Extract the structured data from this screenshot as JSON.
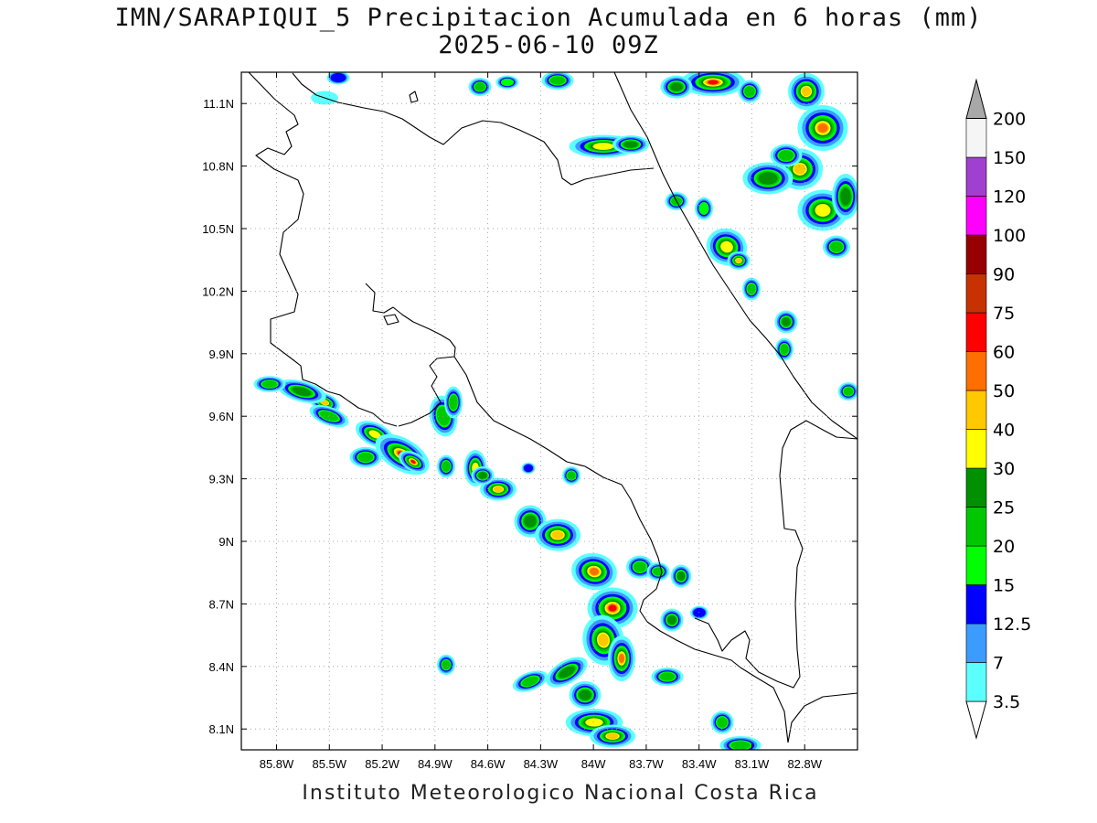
{
  "title": {
    "line1": "IMN/SARAPIQUI_5 Precipitacion Acumulada en 6 horas (mm)",
    "line2": "2025-06-10 09Z"
  },
  "footer": "Instituto Meteorologico Nacional Costa Rica",
  "map": {
    "lon_range": [
      -86.0,
      -82.5
    ],
    "lat_range": [
      8.0,
      11.25
    ],
    "lon_ticks": [
      "85.8W",
      "85.5W",
      "85.2W",
      "84.9W",
      "84.6W",
      "84.3W",
      "84W",
      "83.7W",
      "83.4W",
      "83.1W",
      "82.8W"
    ],
    "lat_ticks": [
      "11.1N",
      "10.8N",
      "10.5N",
      "10.2N",
      "9.9N",
      "9.6N",
      "9.3N",
      "9N",
      "8.7N",
      "8.4N",
      "8.1N"
    ],
    "grid": "dotted",
    "coastline_color": "#000000"
  },
  "colorbar": {
    "levels": [
      "3.5",
      "7",
      "12.5",
      "15",
      "20",
      "25",
      "30",
      "40",
      "50",
      "60",
      "75",
      "90",
      "100",
      "120",
      "150",
      "200"
    ],
    "colors": [
      "#ffffff",
      "#5cffff",
      "#3c9bff",
      "#0000ff",
      "#00ff00",
      "#00c800",
      "#009000",
      "#ffff00",
      "#ffc800",
      "#ff6e00",
      "#ff0000",
      "#c83200",
      "#960000",
      "#ff00ff",
      "#a040d0",
      "#f5f5f5"
    ]
  }
}
